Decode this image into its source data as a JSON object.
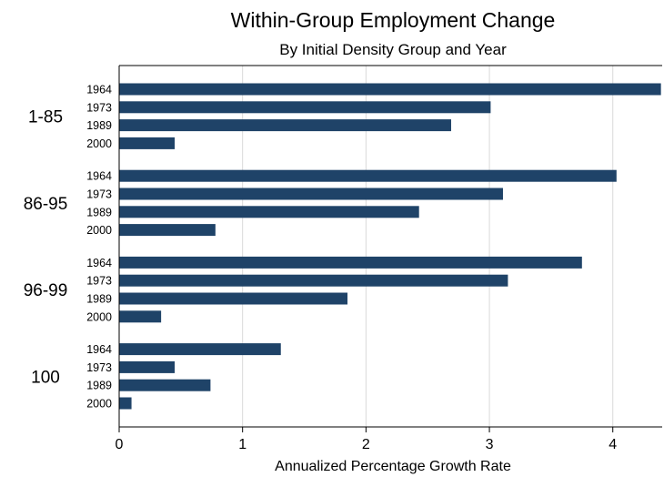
{
  "chart_data": {
    "type": "bar",
    "orientation": "horizontal",
    "title": "Within-Group Employment Change",
    "subtitle": "By Initial Density Group and Year",
    "xlabel": "Annualized Percentage Growth Rate",
    "xlim": [
      0,
      4.4
    ],
    "xticks": [
      0,
      1,
      2,
      3,
      4
    ],
    "grid": true,
    "bar_color": "#1f4368",
    "groups": [
      {
        "label": "1-85",
        "categories": [
          "1964",
          "1973",
          "1989",
          "2000"
        ],
        "values": [
          4.39,
          3.01,
          2.69,
          0.45
        ]
      },
      {
        "label": "86-95",
        "categories": [
          "1964",
          "1973",
          "1989",
          "2000"
        ],
        "values": [
          4.03,
          3.11,
          2.43,
          0.78
        ]
      },
      {
        "label": "96-99",
        "categories": [
          "1964",
          "1973",
          "1989",
          "2000"
        ],
        "values": [
          3.75,
          3.15,
          1.85,
          0.34
        ]
      },
      {
        "label": "100",
        "categories": [
          "1964",
          "1973",
          "1989",
          "2000"
        ],
        "values": [
          1.31,
          0.45,
          0.74,
          0.1
        ]
      }
    ]
  }
}
